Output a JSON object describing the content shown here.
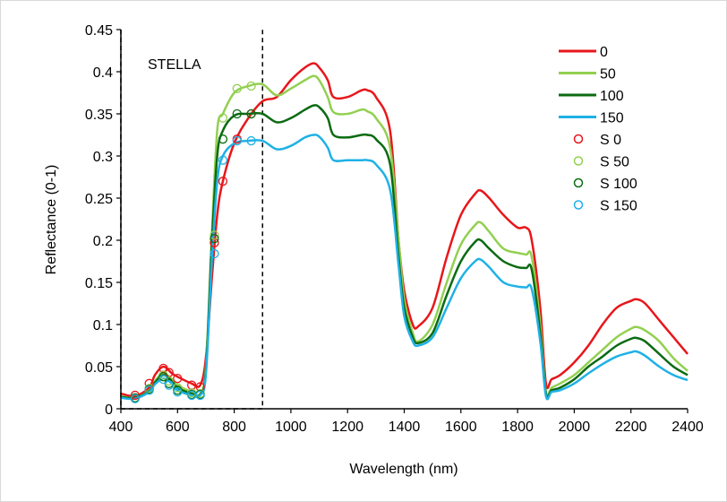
{
  "chart_data": {
    "type": "line",
    "title": "",
    "xlabel": "Wavelength (nm)",
    "ylabel": "Reflectance (0-1)",
    "xlim": [
      400,
      2400
    ],
    "ylim": [
      0,
      0.45
    ],
    "xticks": [
      "400",
      "600",
      "800",
      "1000",
      "1200",
      "1400",
      "1600",
      "1800",
      "2000",
      "2200",
      "2400"
    ],
    "yticks": [
      "0",
      "0.05",
      "0.1",
      "0.15",
      "0.2",
      "0.25",
      "0.3",
      "0.35",
      "0.4",
      "0.45"
    ],
    "grid": false,
    "legend_position": "top-right",
    "annotation": {
      "label": "STELLA",
      "x_range": [
        400,
        900
      ],
      "style": "dashed box"
    },
    "x": [
      400,
      450,
      500,
      520,
      550,
      580,
      600,
      650,
      680,
      700,
      720,
      740,
      760,
      800,
      850,
      900,
      950,
      1000,
      1050,
      1080,
      1100,
      1130,
      1150,
      1200,
      1250,
      1270,
      1300,
      1350,
      1380,
      1400,
      1430,
      1450,
      1500,
      1550,
      1600,
      1650,
      1670,
      1700,
      1750,
      1800,
      1830,
      1850,
      1880,
      1900,
      1920,
      1950,
      2000,
      2050,
      2100,
      2150,
      2200,
      2220,
      2250,
      2300,
      2350,
      2400
    ],
    "series": [
      {
        "name": "0",
        "color": "#e8161b",
        "values": [
          0.018,
          0.015,
          0.025,
          0.04,
          0.05,
          0.042,
          0.038,
          0.03,
          0.028,
          0.06,
          0.15,
          0.23,
          0.27,
          0.315,
          0.345,
          0.365,
          0.37,
          0.39,
          0.405,
          0.41,
          0.405,
          0.39,
          0.37,
          0.37,
          0.378,
          0.378,
          0.37,
          0.33,
          0.2,
          0.14,
          0.1,
          0.098,
          0.12,
          0.18,
          0.23,
          0.255,
          0.259,
          0.25,
          0.23,
          0.215,
          0.215,
          0.2,
          0.12,
          0.03,
          0.035,
          0.04,
          0.055,
          0.075,
          0.1,
          0.12,
          0.128,
          0.13,
          0.125,
          0.105,
          0.085,
          0.065
        ]
      },
      {
        "name": "50",
        "color": "#92d050",
        "values": [
          0.015,
          0.013,
          0.022,
          0.033,
          0.042,
          0.035,
          0.028,
          0.02,
          0.018,
          0.05,
          0.2,
          0.33,
          0.35,
          0.375,
          0.383,
          0.385,
          0.372,
          0.38,
          0.39,
          0.395,
          0.39,
          0.37,
          0.352,
          0.35,
          0.355,
          0.353,
          0.345,
          0.31,
          0.2,
          0.13,
          0.09,
          0.08,
          0.1,
          0.15,
          0.195,
          0.218,
          0.221,
          0.21,
          0.19,
          0.185,
          0.183,
          0.18,
          0.1,
          0.02,
          0.025,
          0.03,
          0.04,
          0.055,
          0.07,
          0.085,
          0.095,
          0.097,
          0.093,
          0.08,
          0.06,
          0.045
        ]
      },
      {
        "name": "100",
        "color": "#0b6b12",
        "values": [
          0.014,
          0.013,
          0.021,
          0.031,
          0.04,
          0.033,
          0.025,
          0.018,
          0.017,
          0.045,
          0.19,
          0.3,
          0.33,
          0.348,
          0.35,
          0.35,
          0.34,
          0.345,
          0.355,
          0.36,
          0.358,
          0.345,
          0.325,
          0.322,
          0.325,
          0.325,
          0.32,
          0.29,
          0.18,
          0.12,
          0.085,
          0.078,
          0.09,
          0.135,
          0.175,
          0.198,
          0.2,
          0.19,
          0.175,
          0.168,
          0.167,
          0.165,
          0.09,
          0.018,
          0.022,
          0.025,
          0.035,
          0.05,
          0.062,
          0.075,
          0.083,
          0.084,
          0.08,
          0.065,
          0.05,
          0.04
        ]
      },
      {
        "name": "150",
        "color": "#1fb1e6",
        "values": [
          0.013,
          0.012,
          0.02,
          0.029,
          0.036,
          0.03,
          0.022,
          0.016,
          0.016,
          0.04,
          0.17,
          0.27,
          0.3,
          0.315,
          0.318,
          0.318,
          0.308,
          0.312,
          0.322,
          0.325,
          0.323,
          0.31,
          0.295,
          0.295,
          0.295,
          0.295,
          0.29,
          0.26,
          0.17,
          0.11,
          0.08,
          0.075,
          0.085,
          0.12,
          0.155,
          0.175,
          0.177,
          0.168,
          0.15,
          0.145,
          0.144,
          0.142,
          0.08,
          0.015,
          0.02,
          0.022,
          0.03,
          0.042,
          0.053,
          0.062,
          0.067,
          0.068,
          0.063,
          0.05,
          0.04,
          0.034
        ]
      }
    ],
    "scatter_x": [
      450,
      500,
      550,
      570,
      600,
      650,
      680,
      730,
      760,
      810,
      860
    ],
    "scatter_series": [
      {
        "name": "S 0",
        "color": "#e8161b",
        "values": [
          0.016,
          0.03,
          0.048,
          0.043,
          0.036,
          0.028,
          0.026,
          0.197,
          0.27,
          0.32,
          0.35
        ]
      },
      {
        "name": "S 50",
        "color": "#92d050",
        "values": [
          0.013,
          0.024,
          0.04,
          0.033,
          0.025,
          0.019,
          0.018,
          0.206,
          0.345,
          0.38,
          0.383
        ]
      },
      {
        "name": "S 100",
        "color": "#0b6b12",
        "values": [
          0.013,
          0.023,
          0.038,
          0.03,
          0.022,
          0.017,
          0.017,
          0.202,
          0.32,
          0.35,
          0.35
        ]
      },
      {
        "name": "S 150",
        "color": "#1fb1e6",
        "values": [
          0.012,
          0.022,
          0.035,
          0.028,
          0.02,
          0.016,
          0.016,
          0.184,
          0.295,
          0.318,
          0.318
        ]
      }
    ]
  }
}
